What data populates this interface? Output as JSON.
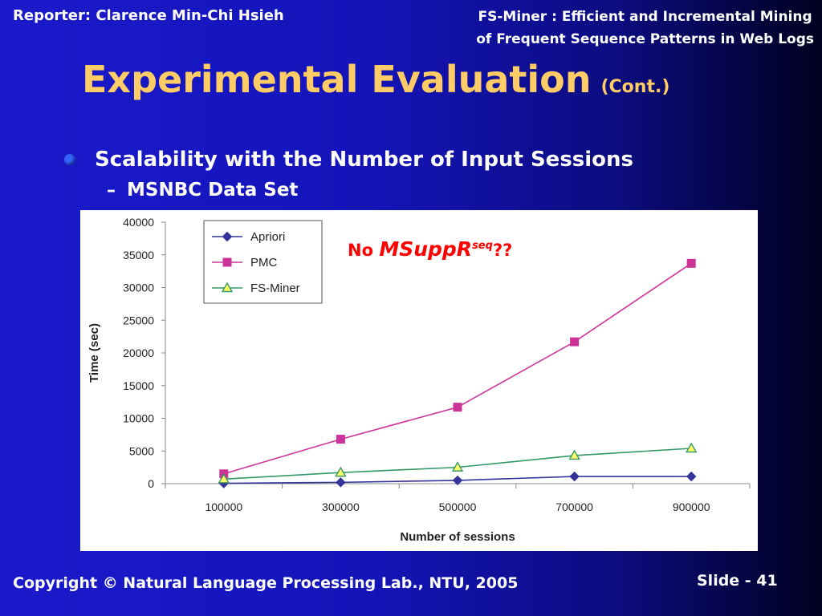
{
  "header": {
    "reporter": "Reporter: Clarence Min-Chi Hsieh",
    "paper_title_line1": "FS-Miner : Efficient and Incremental Mining",
    "paper_title_line2": "of Frequent Sequence Patterns in Web Logs"
  },
  "slide": {
    "title": "Experimental Evaluation",
    "title_suffix": "(Cont.)",
    "bullet": "Scalability with the Number of Input Sessions",
    "sub_bullet_dash": "–",
    "sub_bullet": "MSNBC Data Set"
  },
  "annotation": {
    "prefix": "No ",
    "term": "MSuppR",
    "superscript": "seq",
    "suffix": "??",
    "color": "#ff0000"
  },
  "chart_data": {
    "type": "line",
    "categories": [
      "100000",
      "300000",
      "500000",
      "700000",
      "900000"
    ],
    "series": [
      {
        "name": "Apriori",
        "values": [
          50,
          200,
          500,
          1100,
          1100
        ],
        "color": "#333399",
        "marker": "diamond"
      },
      {
        "name": "PMC",
        "values": [
          1500,
          6800,
          11700,
          21700,
          33700
        ],
        "color": "#cc3399",
        "marker": "square"
      },
      {
        "name": "FS-Miner",
        "values": [
          700,
          1700,
          2500,
          4300,
          5400
        ],
        "color": "#339966",
        "marker_fill": "#ffff66",
        "marker": "triangle"
      }
    ],
    "xlabel": "Number of sessions",
    "ylabel": "Time (sec)",
    "ylim": [
      0,
      40000
    ],
    "yticks": [
      "0",
      "5000",
      "10000",
      "15000",
      "20000",
      "25000",
      "30000",
      "35000",
      "40000"
    ],
    "legend_position": "top-left",
    "grid": false
  },
  "footer": {
    "copyright": "Copyright © Natural Language Processing Lab., NTU,  2005",
    "slide_number": "Slide - 41"
  }
}
